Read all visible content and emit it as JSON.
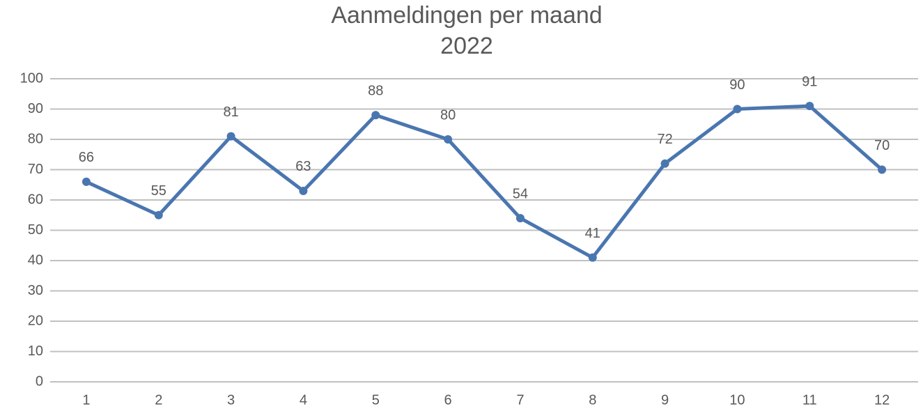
{
  "chart_data": {
    "type": "line",
    "title": "Aanmeldingen per maand",
    "subtitle": "2022",
    "categories": [
      "1",
      "2",
      "3",
      "4",
      "5",
      "6",
      "7",
      "8",
      "9",
      "10",
      "11",
      "12"
    ],
    "series": [
      {
        "name": null,
        "color": "#4a76b0",
        "values": [
          66,
          55,
          81,
          63,
          88,
          80,
          54,
          41,
          72,
          90,
          91,
          70
        ]
      }
    ],
    "ylim": [
      0,
      100
    ],
    "yticks": [
      0,
      10,
      20,
      30,
      40,
      50,
      60,
      70,
      80,
      90,
      100
    ],
    "grid": true,
    "data_labels": true
  }
}
